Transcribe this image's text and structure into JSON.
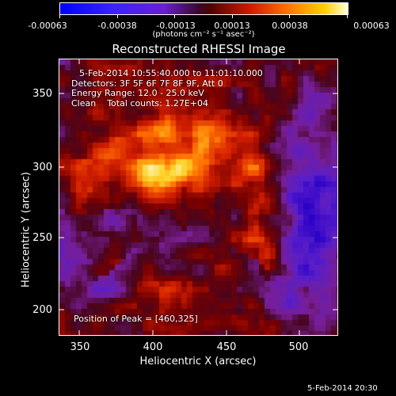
{
  "colorbar": {
    "ticks": [
      "-0.00063",
      "-0.00038",
      "-0.00013",
      "0.00013",
      "0.00038",
      "0.00063"
    ],
    "units": "(photons cm⁻² s⁻¹ asec⁻²)"
  },
  "plot": {
    "title": "Reconstructed RHESSI Image",
    "xlabel": "Heliocentric X (arcsec)",
    "ylabel": "Heliocentric Y (arcsec)",
    "xticks": [
      "350",
      "400",
      "450",
      "500"
    ],
    "yticks": [
      "350",
      "300",
      "250",
      "200"
    ]
  },
  "annotation": {
    "time_range": "5-Feb-2014 10:55:40.000 to 11:01:10.000",
    "detectors": "Detectors: 3F 5F 6F 7F 8F 9F, Att 0",
    "energy": "Energy Range: 12.0 - 25.0 keV",
    "clean": "Clean    Total counts: 1.27E+04",
    "peak": "Position of Peak = [460,325]"
  },
  "footer": {
    "timestamp": "5-Feb-2014 20:30"
  },
  "image": {
    "x_range": [
      337,
      527
    ],
    "y_range": [
      181,
      374
    ],
    "peak": [
      460,
      325
    ]
  }
}
